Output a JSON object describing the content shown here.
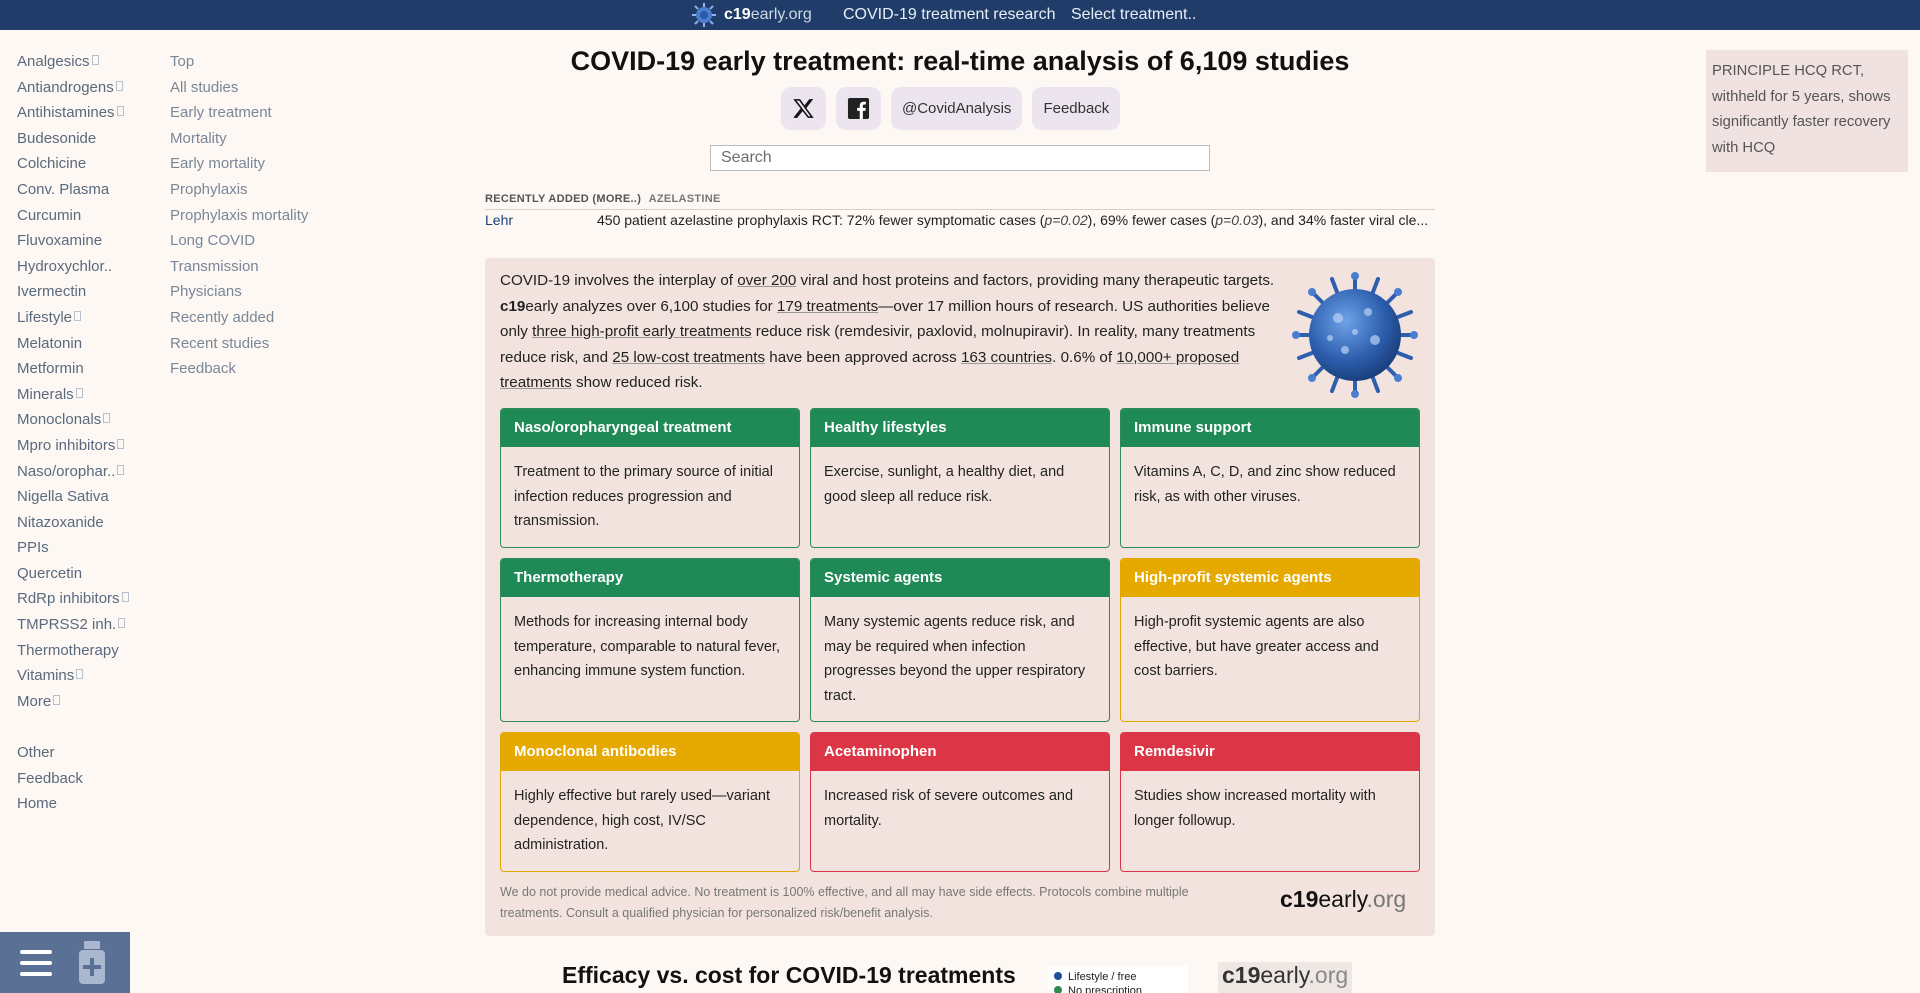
{
  "topbar": {
    "brand_bold": "c19",
    "brand_rest": "early.org",
    "research": "COVID-19 treatment research",
    "select": "Select treatment.."
  },
  "sidebar": {
    "treatments": [
      {
        "label": "Analgesics",
        "sub": true
      },
      {
        "label": "Antiandrogens",
        "sub": true
      },
      {
        "label": "Antihistamines",
        "sub": true
      },
      {
        "label": "Budesonide",
        "sub": false
      },
      {
        "label": "Colchicine",
        "sub": false
      },
      {
        "label": "Conv. Plasma",
        "sub": false
      },
      {
        "label": "Curcumin",
        "sub": false
      },
      {
        "label": "Fluvoxamine",
        "sub": false
      },
      {
        "label": "Hydroxychlor..",
        "sub": false
      },
      {
        "label": "Ivermectin",
        "sub": false
      },
      {
        "label": "Lifestyle",
        "sub": true
      },
      {
        "label": "Melatonin",
        "sub": false
      },
      {
        "label": "Metformin",
        "sub": false
      },
      {
        "label": "Minerals",
        "sub": true
      },
      {
        "label": "Monoclonals",
        "sub": true
      },
      {
        "label": "Mpro inhibitors",
        "sub": true
      },
      {
        "label": "Naso/orophar..",
        "sub": true
      },
      {
        "label": "Nigella Sativa",
        "sub": false
      },
      {
        "label": "Nitazoxanide",
        "sub": false
      },
      {
        "label": "PPIs",
        "sub": false
      },
      {
        "label": "Quercetin",
        "sub": false
      },
      {
        "label": "RdRp inhibitors",
        "sub": true
      },
      {
        "label": "TMPRSS2 inh.",
        "sub": true
      },
      {
        "label": "Thermotherapy",
        "sub": false
      },
      {
        "label": "Vitamins",
        "sub": true
      },
      {
        "label": "More",
        "sub": true
      }
    ],
    "bottom": [
      "Other",
      "Feedback",
      "Home"
    ],
    "sections": [
      "Top",
      "All studies",
      "Early treatment",
      "Mortality",
      "Early mortality",
      "Prophylaxis",
      "Prophylaxis mortality",
      "Long COVID",
      "Transmission",
      "Physicians",
      "Recently added",
      "Recent studies",
      "Feedback"
    ]
  },
  "main": {
    "title": "COVID-19 early treatment: real-time analysis of 6,109 studies",
    "social": {
      "handle": "@CovidAnalysis",
      "feedback": "Feedback"
    },
    "search_placeholder": "Search",
    "recent": {
      "heading": "RECENTLY ADDED (MORE..)",
      "tag": "AZELASTINE",
      "author": "Lehr",
      "text_a": "450 patient azelastine prophylaxis RCT: 72% fewer symptomatic cases (",
      "p1": "p=0.02",
      "text_b": "), 69% fewer cases (",
      "p2": "p=0.03",
      "text_c": "), and 34% faster viral cle..."
    },
    "intro": {
      "t1": "COVID-19 involves the interplay of ",
      "l1": "over 200",
      "t2": " viral and host proteins and factors, providing many therapeutic targets. ",
      "b1": "c19",
      "t3": "early analyzes over 6,100 studies for ",
      "l2": "179 treatments",
      "t4": "—over 17 million hours of research. US authorities believe only ",
      "l3": "three high-profit early treatments",
      "t5": " reduce risk (remdesivir, paxlovid, molnupiravir). In reality, many treatments reduce risk, and ",
      "l4": "25 low-cost treatments",
      "t6": " have been approved across ",
      "l5": "163 countries",
      "t7": ". 0.6% of ",
      "l6": "10,000+ proposed treatments",
      "t8": " show reduced risk."
    },
    "cards": [
      {
        "title": "Naso/oropharyngeal treatment",
        "body": "Treatment to the primary source of initial infection reduces progression and transmission.",
        "color": "green"
      },
      {
        "title": "Healthy lifestyles",
        "body": "Exercise, sunlight, a healthy diet, and good sleep all reduce risk.",
        "color": "green"
      },
      {
        "title": "Immune support",
        "body": "Vitamins A, C, D, and zinc show reduced risk, as with other viruses.",
        "color": "green"
      },
      {
        "title": "Thermotherapy",
        "body": "Methods for increasing internal body temperature, comparable to natural fever, enhancing immune system function.",
        "color": "green"
      },
      {
        "title": "Systemic agents",
        "body": "Many systemic agents reduce risk, and may be required when infection progresses beyond the upper respiratory tract.",
        "color": "green"
      },
      {
        "title": "High-profit systemic agents",
        "body": "High-profit systemic agents are also effective, but have greater access and cost barriers.",
        "color": "yellow"
      },
      {
        "title": "Monoclonal antibodies",
        "body": "Highly effective but rarely used—variant dependence, high cost, IV/SC administration.",
        "color": "yellow"
      },
      {
        "title": "Acetaminophen",
        "body": "Increased risk of severe outcomes and mortality.",
        "color": "red"
      },
      {
        "title": "Remdesivir",
        "body": "Studies show increased mortality with longer followup.",
        "color": "red"
      }
    ],
    "disclaimer": "We do not provide medical advice. No treatment is 100% effective, and all may have side effects. Protocols combine multiple treatments. Consult a qualified physician for personalized risk/benefit analysis.",
    "logo_bold": "c19",
    "logo_mid": "early",
    "logo_org": ".org",
    "efficacy_title": "Efficacy vs. cost for COVID-19 treatments",
    "legend": [
      "Lifestyle / free",
      "No prescription"
    ]
  },
  "news": "PRINCIPLE HCQ RCT, withheld for 5 years, shows significantly faster recovery with HCQ",
  "colors": {
    "topbar": "#1f3d68",
    "green": "#1f8a56",
    "yellow": "#e6a900",
    "red": "#dc3545",
    "panel": "#f3e3df"
  }
}
